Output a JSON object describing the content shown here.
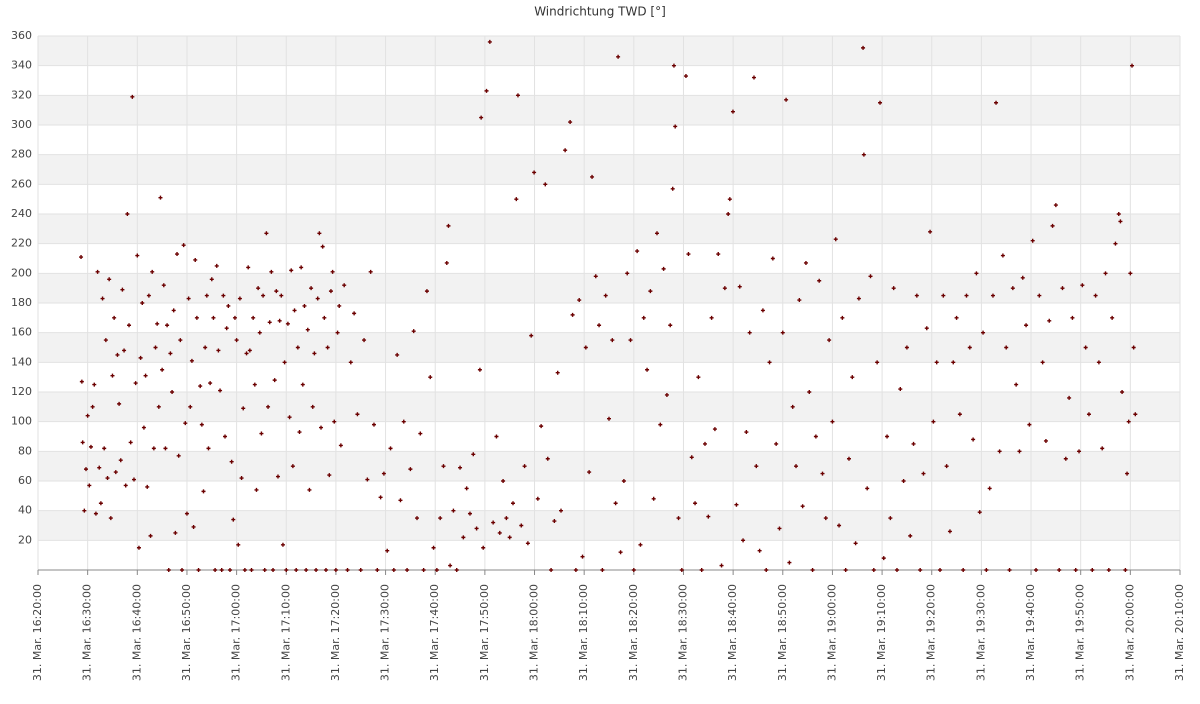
{
  "chart_data": {
    "type": "scatter",
    "title": "Windrichtung TWD [°]",
    "xlim": [
      "16:20:00",
      "20:10:00"
    ],
    "xticks": [
      {
        "value": "16:20:00",
        "label": "31. Mar. 16:20:00"
      },
      {
        "value": "16:30:00",
        "label": "31. Mar. 16:30:00"
      },
      {
        "value": "16:40:00",
        "label": "31. Mar. 16:40:00"
      },
      {
        "value": "16:50:00",
        "label": "31. Mar. 16:50:00"
      },
      {
        "value": "17:00:00",
        "label": "31. Mar. 17:00:00"
      },
      {
        "value": "17:10:00",
        "label": "31. Mar. 17:10:00"
      },
      {
        "value": "17:20:00",
        "label": "31. Mar. 17:20:00"
      },
      {
        "value": "17:30:00",
        "label": "31. Mar. 17:30:00"
      },
      {
        "value": "17:40:00",
        "label": "31. Mar. 17:40:00"
      },
      {
        "value": "17:50:00",
        "label": "31. Mar. 17:50:00"
      },
      {
        "value": "18:00:00",
        "label": "31. Mar. 18:00:00"
      },
      {
        "value": "18:10:00",
        "label": "31. Mar. 18:10:00"
      },
      {
        "value": "18:20:00",
        "label": "31. Mar. 18:20:00"
      },
      {
        "value": "18:30:00",
        "label": "31. Mar. 18:30:00"
      },
      {
        "value": "18:40:00",
        "label": "31. Mar. 18:40:00"
      },
      {
        "value": "18:50:00",
        "label": "31. Mar. 18:50:00"
      },
      {
        "value": "19:00:00",
        "label": "31. Mar. 19:00:00"
      },
      {
        "value": "19:10:00",
        "label": "31. Mar. 19:10:00"
      },
      {
        "value": "19:20:00",
        "label": "31. Mar. 19:20:00"
      },
      {
        "value": "19:30:00",
        "label": "31. Mar. 19:30:00"
      },
      {
        "value": "19:40:00",
        "label": "31. Mar. 19:40:00"
      },
      {
        "value": "19:50:00",
        "label": "31. Mar. 19:50:00"
      },
      {
        "value": "20:00:00",
        "label": "31. Mar. 20:00:00"
      },
      {
        "value": "20:10:00",
        "label": "31. Mar. 20:10:00"
      }
    ],
    "ylim": [
      0,
      360
    ],
    "yticks": [
      20,
      40,
      60,
      80,
      100,
      120,
      140,
      160,
      180,
      200,
      220,
      240,
      260,
      280,
      300,
      320,
      340,
      360
    ],
    "grid": true,
    "x": [
      "16:28:40",
      "16:28:50",
      "16:29:00",
      "16:29:20",
      "16:29:40",
      "16:30:00",
      "16:30:20",
      "16:30:40",
      "16:31:00",
      "16:31:20",
      "16:31:40",
      "16:32:00",
      "16:32:20",
      "16:32:40",
      "16:33:00",
      "16:33:20",
      "16:33:40",
      "16:34:00",
      "16:34:20",
      "16:34:40",
      "16:35:00",
      "16:35:20",
      "16:35:40",
      "16:36:00",
      "16:36:20",
      "16:36:40",
      "16:37:00",
      "16:37:20",
      "16:37:40",
      "16:38:00",
      "16:38:20",
      "16:38:40",
      "16:39:00",
      "16:39:20",
      "16:39:40",
      "16:40:00",
      "16:40:20",
      "16:40:40",
      "16:41:00",
      "16:41:20",
      "16:41:40",
      "16:42:00",
      "16:42:20",
      "16:42:40",
      "16:43:00",
      "16:43:20",
      "16:43:40",
      "16:44:00",
      "16:44:20",
      "16:44:40",
      "16:45:00",
      "16:45:20",
      "16:45:40",
      "16:46:00",
      "16:46:20",
      "16:46:40",
      "16:47:00",
      "16:47:20",
      "16:47:40",
      "16:48:00",
      "16:48:20",
      "16:48:40",
      "16:49:00",
      "16:49:20",
      "16:49:40",
      "16:50:00",
      "16:50:20",
      "16:50:40",
      "16:51:00",
      "16:51:20",
      "16:51:40",
      "16:52:00",
      "16:52:20",
      "16:52:40",
      "16:53:00",
      "16:53:20",
      "16:53:40",
      "16:54:00",
      "16:54:20",
      "16:54:40",
      "16:55:00",
      "16:55:20",
      "16:55:40",
      "16:56:00",
      "16:56:20",
      "16:56:40",
      "16:57:00",
      "16:57:20",
      "16:57:40",
      "16:58:00",
      "16:58:20",
      "16:58:40",
      "16:59:00",
      "16:59:20",
      "16:59:40",
      "17:00:00",
      "17:00:20",
      "17:00:40",
      "17:01:00",
      "17:01:20",
      "17:01:40",
      "17:02:00",
      "17:02:20",
      "17:02:40",
      "17:03:00",
      "17:03:20",
      "17:03:40",
      "17:04:00",
      "17:04:20",
      "17:04:40",
      "17:05:00",
      "17:05:20",
      "17:05:40",
      "17:06:00",
      "17:06:20",
      "17:06:40",
      "17:07:00",
      "17:07:20",
      "17:07:40",
      "17:08:00",
      "17:08:20",
      "17:08:40",
      "17:09:00",
      "17:09:20",
      "17:09:40",
      "17:10:00",
      "17:10:20",
      "17:10:40",
      "17:11:00",
      "17:11:20",
      "17:11:40",
      "17:12:00",
      "17:12:20",
      "17:12:40",
      "17:13:00",
      "17:13:20",
      "17:13:40",
      "17:14:00",
      "17:14:20",
      "17:14:40",
      "17:15:00",
      "17:15:20",
      "17:15:40",
      "17:16:00",
      "17:16:20",
      "17:16:40",
      "17:17:00",
      "17:17:20",
      "17:17:40",
      "17:18:00",
      "17:18:20",
      "17:18:40",
      "17:19:00",
      "17:19:20",
      "17:19:40",
      "17:20:00",
      "17:20:20",
      "17:20:40",
      "17:21:00",
      "17:21:40",
      "17:22:20",
      "17:23:00",
      "17:23:40",
      "17:24:20",
      "17:25:00",
      "17:25:40",
      "17:26:20",
      "17:27:00",
      "17:27:40",
      "17:28:20",
      "17:29:00",
      "17:29:40",
      "17:30:20",
      "17:31:00",
      "17:31:40",
      "17:32:20",
      "17:33:00",
      "17:33:40",
      "17:34:20",
      "17:35:00",
      "17:35:40",
      "17:36:20",
      "17:37:00",
      "17:37:40",
      "17:38:20",
      "17:39:00",
      "17:39:40",
      "17:40:20",
      "17:41:00",
      "17:41:40",
      "17:42:20",
      "17:42:40",
      "17:43:00",
      "17:43:40",
      "17:44:20",
      "17:45:00",
      "17:45:40",
      "17:46:20",
      "17:47:00",
      "17:47:40",
      "17:48:20",
      "17:49:00",
      "17:49:15",
      "17:49:40",
      "17:50:20",
      "17:51:00",
      "17:51:40",
      "17:52:20",
      "17:53:00",
      "17:53:40",
      "17:54:20",
      "17:55:00",
      "17:55:40",
      "17:56:20",
      "17:56:40",
      "17:57:20",
      "17:58:00",
      "17:58:40",
      "17:59:20",
      "17:59:55",
      "18:00:40",
      "18:01:20",
      "18:02:10",
      "18:02:40",
      "18:03:20",
      "18:04:00",
      "18:04:40",
      "18:05:20",
      "18:06:10",
      "18:07:10",
      "18:07:40",
      "18:08:20",
      "18:09:00",
      "18:09:40",
      "18:10:20",
      "18:11:00",
      "18:11:35",
      "18:12:20",
      "18:13:00",
      "18:13:40",
      "18:14:20",
      "18:15:00",
      "18:15:40",
      "18:16:20",
      "18:16:50",
      "18:17:20",
      "18:18:00",
      "18:18:40",
      "18:19:20",
      "18:20:00",
      "18:20:40",
      "18:21:20",
      "18:22:00",
      "18:22:40",
      "18:23:20",
      "18:24:00",
      "18:24:40",
      "18:25:20",
      "18:26:00",
      "18:26:40",
      "18:27:20",
      "18:27:50",
      "18:28:05",
      "18:28:20",
      "18:29:00",
      "18:29:40",
      "18:30:30",
      "18:31:00",
      "18:31:40",
      "18:32:20",
      "18:33:00",
      "18:33:40",
      "18:34:20",
      "18:35:00",
      "18:35:40",
      "18:36:20",
      "18:37:00",
      "18:37:40",
      "18:38:20",
      "18:39:00",
      "18:39:20",
      "18:39:58",
      "18:40:40",
      "18:41:20",
      "18:42:00",
      "18:42:40",
      "18:43:20",
      "18:44:12",
      "18:44:40",
      "18:45:20",
      "18:46:00",
      "18:46:40",
      "18:47:20",
      "18:48:00",
      "18:48:40",
      "18:49:20",
      "18:50:00",
      "18:50:40",
      "18:51:20",
      "18:52:00",
      "18:52:40",
      "18:53:20",
      "18:54:00",
      "18:54:40",
      "18:55:20",
      "18:56:00",
      "18:56:40",
      "18:57:20",
      "18:58:00",
      "18:58:40",
      "18:59:20",
      "19:00:00",
      "19:00:40",
      "19:01:20",
      "19:02:00",
      "19:02:40",
      "19:03:20",
      "19:04:00",
      "19:04:40",
      "19:05:20",
      "19:06:10",
      "19:06:20",
      "19:07:00",
      "19:07:40",
      "19:08:20",
      "19:09:00",
      "19:09:35",
      "19:10:20",
      "19:11:00",
      "19:11:40",
      "19:12:20",
      "19:13:00",
      "19:13:40",
      "19:14:20",
      "19:15:00",
      "19:15:40",
      "19:16:20",
      "19:17:00",
      "19:17:40",
      "19:18:20",
      "19:19:00",
      "19:19:40",
      "19:20:20",
      "19:21:00",
      "19:21:40",
      "19:22:20",
      "19:23:00",
      "19:23:40",
      "19:24:20",
      "19:25:00",
      "19:25:40",
      "19:26:20",
      "19:27:00",
      "19:27:40",
      "19:28:20",
      "19:29:00",
      "19:29:40",
      "19:30:20",
      "19:31:00",
      "19:31:40",
      "19:32:20",
      "19:32:57",
      "19:33:40",
      "19:34:20",
      "19:35:00",
      "19:35:40",
      "19:36:20",
      "19:37:00",
      "19:37:40",
      "19:38:20",
      "19:39:00",
      "19:39:40",
      "19:40:20",
      "19:41:00",
      "19:41:40",
      "19:42:20",
      "19:43:00",
      "19:43:40",
      "19:44:20",
      "19:45:00",
      "19:45:40",
      "19:46:20",
      "19:47:00",
      "19:47:40",
      "19:48:20",
      "19:49:00",
      "19:49:40",
      "19:50:20",
      "19:51:00",
      "19:51:40",
      "19:52:20",
      "19:53:00",
      "19:53:40",
      "19:54:20",
      "19:55:00",
      "19:55:40",
      "19:56:20",
      "19:57:00",
      "19:57:40",
      "19:58:00",
      "19:58:20",
      "19:59:00",
      "19:59:20",
      "19:59:40",
      "20:00:00",
      "20:00:20",
      "20:00:40",
      "20:01:00"
    ],
    "series": [
      {
        "name": "TWD",
        "color": "#6b0000",
        "values": [
          211,
          127,
          86,
          40,
          68,
          104,
          57,
          83,
          110,
          125,
          38,
          201,
          69,
          45,
          183,
          82,
          155,
          62,
          196,
          35,
          131,
          170,
          66,
          145,
          112,
          74,
          189,
          148,
          57,
          240,
          165,
          86,
          319,
          61,
          126,
          212,
          15,
          143,
          180,
          96,
          131,
          56,
          185,
          23,
          201,
          82,
          150,
          166,
          110,
          251,
          135,
          192,
          82,
          165,
          0,
          146,
          120,
          175,
          25,
          213,
          77,
          155,
          0,
          219,
          99,
          38,
          183,
          110,
          141,
          29,
          209,
          170,
          0,
          124,
          98,
          53,
          150,
          185,
          82,
          126,
          196,
          170,
          0,
          205,
          148,
          121,
          0,
          185,
          90,
          163,
          178,
          0,
          73,
          34,
          170,
          155,
          17,
          183,
          62,
          109,
          0,
          146,
          204,
          148,
          0,
          170,
          125,
          54,
          190,
          160,
          92,
          185,
          0,
          227,
          110,
          167,
          201,
          0,
          128,
          188,
          63,
          168,
          185,
          17,
          140,
          0,
          166,
          103,
          202,
          70,
          175,
          0,
          150,
          93,
          204,
          125,
          178,
          0,
          162,
          54,
          190,
          110,
          146,
          0,
          183,
          227,
          96,
          218,
          170,
          0,
          150,
          64,
          188,
          201,
          100,
          0,
          160,
          178,
          84,
          192,
          0,
          140,
          173,
          105,
          0,
          155,
          61,
          201,
          98,
          0,
          49,
          65,
          13,
          82,
          0,
          145,
          47,
          100,
          0,
          68,
          161,
          35,
          92,
          0,
          188,
          130,
          15,
          0,
          35,
          70,
          207,
          232,
          3,
          40,
          0,
          69,
          22,
          55,
          38,
          78,
          28,
          135,
          305,
          15,
          323,
          356,
          32,
          90,
          25,
          60,
          35,
          22,
          45,
          250,
          320,
          30,
          70,
          18,
          158,
          268,
          48,
          97,
          260,
          75,
          0,
          33,
          133,
          40,
          283,
          302,
          172,
          0,
          182,
          9,
          150,
          66,
          265,
          198,
          165,
          0,
          185,
          102,
          155,
          45,
          346,
          12,
          60,
          200,
          155,
          0,
          215,
          17,
          170,
          135,
          188,
          48,
          227,
          98,
          203,
          118,
          165,
          257,
          340,
          299,
          35,
          0,
          333,
          213,
          76,
          45,
          130,
          0,
          85,
          36,
          170,
          95,
          213,
          3,
          190,
          240,
          250,
          309,
          44,
          191,
          20,
          93,
          160,
          332,
          70,
          13,
          175,
          0,
          140,
          210,
          85,
          28,
          160,
          317,
          5,
          110,
          70,
          182,
          43,
          207,
          120,
          0,
          90,
          195,
          65,
          35,
          155,
          100,
          223,
          30,
          170,
          0,
          75,
          130,
          18,
          183,
          352,
          280,
          55,
          198,
          0,
          140,
          315,
          8,
          90,
          35,
          190,
          0,
          122,
          60,
          150,
          23,
          85,
          185,
          0,
          65,
          163,
          228,
          100,
          140,
          0,
          185,
          70,
          26,
          140,
          170,
          105,
          0,
          185,
          150,
          88,
          200,
          39,
          160,
          0,
          55,
          185,
          315,
          80,
          212,
          150,
          0,
          190,
          125,
          80,
          197,
          165,
          98,
          222,
          0,
          185,
          140,
          87,
          168,
          232,
          246,
          0,
          190,
          75,
          116,
          170,
          0,
          80,
          192,
          150,
          105,
          0,
          185,
          140,
          82,
          200,
          0,
          170,
          220,
          240,
          235,
          120,
          0,
          65,
          100,
          200,
          340,
          150,
          105
        ]
      }
    ]
  }
}
